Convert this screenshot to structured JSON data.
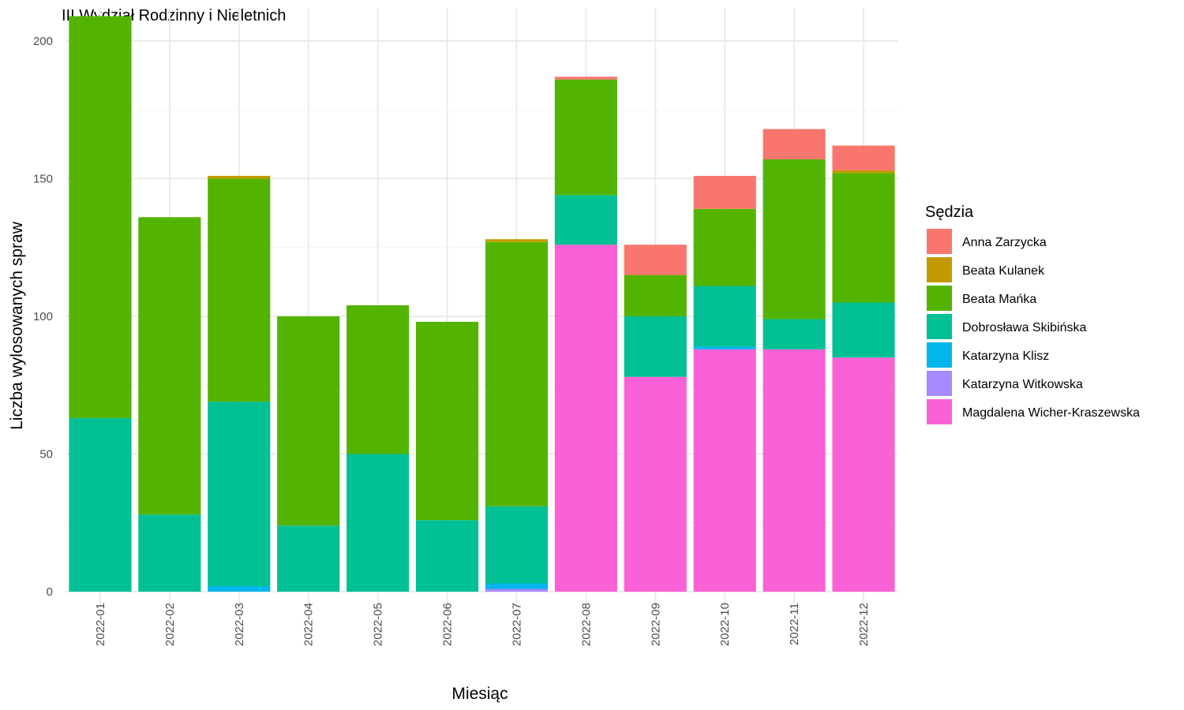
{
  "chart_data": {
    "type": "bar",
    "stacked": true,
    "title": "III Wydział Rodzinny i Nieletnich",
    "xlabel": "Miesiąc",
    "ylabel": "Liczba wylosowanych spraw",
    "ylim": [
      0,
      212
    ],
    "yticks": [
      0,
      50,
      100,
      150,
      200
    ],
    "grid": true,
    "legend_title": "Sędzia",
    "legend_position": "right",
    "categories": [
      "2022-01",
      "2022-02",
      "2022-03",
      "2022-04",
      "2022-05",
      "2022-06",
      "2022-07",
      "2022-08",
      "2022-09",
      "2022-10",
      "2022-11",
      "2022-12"
    ],
    "series": [
      {
        "name": "Magdalena Wicher-Kraszewska",
        "color": "#FB61D7",
        "values": [
          0,
          0,
          0,
          0,
          0,
          0,
          0,
          126,
          78,
          88,
          88,
          85
        ]
      },
      {
        "name": "Katarzyna Witkowska",
        "color": "#A58AFF",
        "values": [
          0,
          0,
          0,
          0,
          0,
          0,
          1,
          0,
          0,
          0,
          0,
          0
        ]
      },
      {
        "name": "Katarzyna Klisz",
        "color": "#00B6EB",
        "values": [
          0,
          0,
          2,
          0,
          0,
          0,
          2,
          0,
          0,
          1,
          0,
          0
        ]
      },
      {
        "name": "Dobrosława Skibińska",
        "color": "#00C094",
        "values": [
          63,
          28,
          67,
          24,
          50,
          26,
          28,
          18,
          22,
          22,
          11,
          20
        ]
      },
      {
        "name": "Beata Mańka",
        "color": "#53B400",
        "values": [
          146,
          108,
          81,
          76,
          54,
          72,
          96,
          42,
          15,
          28,
          58,
          47
        ]
      },
      {
        "name": "Beata Kulanek",
        "color": "#C49A00",
        "values": [
          0,
          0,
          1,
          0,
          0,
          0,
          1,
          0,
          0,
          0,
          0,
          1
        ]
      },
      {
        "name": "Anna Zarzycka",
        "color": "#F8766D",
        "values": [
          0,
          0,
          0,
          0,
          0,
          0,
          0,
          1,
          11,
          12,
          11,
          9
        ]
      }
    ],
    "legend_order": [
      "Anna Zarzycka",
      "Beata Kulanek",
      "Beata Mańka",
      "Dobrosława Skibińska",
      "Katarzyna Klisz",
      "Katarzyna Witkowska",
      "Magdalena Wicher-Kraszewska"
    ]
  }
}
